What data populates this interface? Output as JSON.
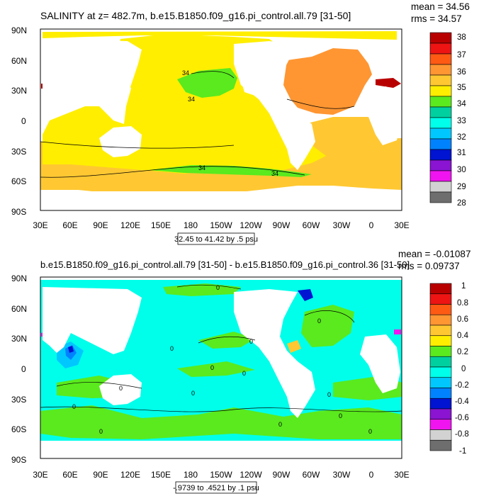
{
  "chart_data": [
    {
      "type": "heatmap",
      "title": "SALINITY at z= 482.7m, b.e15.B1850.f09_g16.pi_control.all.79 [31-50]",
      "stats": [
        "mean = 34.56",
        "rms = 34.57"
      ],
      "range_label": "32.45 to 41.42 by .5 psu",
      "x_ticks": [
        "30E",
        "60E",
        "90E",
        "120E",
        "150E",
        "180",
        "150W",
        "120W",
        "90W",
        "60W",
        "30W",
        "0",
        "30E"
      ],
      "y_ticks": [
        "90N",
        "60N",
        "30N",
        "0",
        "30S",
        "60S",
        "90S"
      ],
      "colorbar": {
        "labels": [
          "38",
          "37",
          "36",
          "35",
          "34",
          "33",
          "32",
          "31",
          "30",
          "29",
          "28"
        ],
        "colors": [
          "#b80000",
          "#ee1414",
          "#ff5a14",
          "#ff9632",
          "#ffc832",
          "#ffee00",
          "#5aea1e",
          "#00d0a0",
          "#00ffea",
          "#00c8ff",
          "#0082ff",
          "#0014d2",
          "#8a14d2",
          "#f014f0",
          "#d2d2d2",
          "#6e6e6e"
        ]
      },
      "contour_labels": [
        "34",
        "34",
        "34",
        "34"
      ]
    },
    {
      "type": "heatmap",
      "title": "b.e15.B1850.f09_g16.pi_control.all.79 [31-50] - b.e15.B1850.f09_g16.pi_control.36 [31-50]",
      "stats": [
        "mean = -0.01087",
        "rms = 0.09737"
      ],
      "range_label": "-.9739 to .4521 by .1 psu",
      "x_ticks": [
        "30E",
        "60E",
        "90E",
        "120E",
        "150E",
        "180",
        "150W",
        "120W",
        "90W",
        "60W",
        "30W",
        "0",
        "30E"
      ],
      "y_ticks": [
        "90N",
        "60N",
        "30N",
        "0",
        "30S",
        "60S",
        "90S"
      ],
      "colorbar": {
        "labels": [
          "1",
          "0.8",
          "0.6",
          "0.4",
          "0.2",
          "0",
          "-0.2",
          "-0.4",
          "-0.6",
          "-0.8",
          "-1"
        ],
        "colors": [
          "#b80000",
          "#ee1414",
          "#ff5a14",
          "#ff9632",
          "#ffc832",
          "#ffee00",
          "#5aea1e",
          "#00d0a0",
          "#00ffea",
          "#00c8ff",
          "#0082ff",
          "#0014d2",
          "#8a14d2",
          "#f014f0",
          "#d2d2d2",
          "#6e6e6e"
        ]
      },
      "contour_labels": [
        "0",
        "0",
        "0",
        "0",
        "0",
        "0",
        "0",
        "0",
        "0",
        "0",
        "0",
        "0",
        "0",
        "0"
      ]
    }
  ]
}
